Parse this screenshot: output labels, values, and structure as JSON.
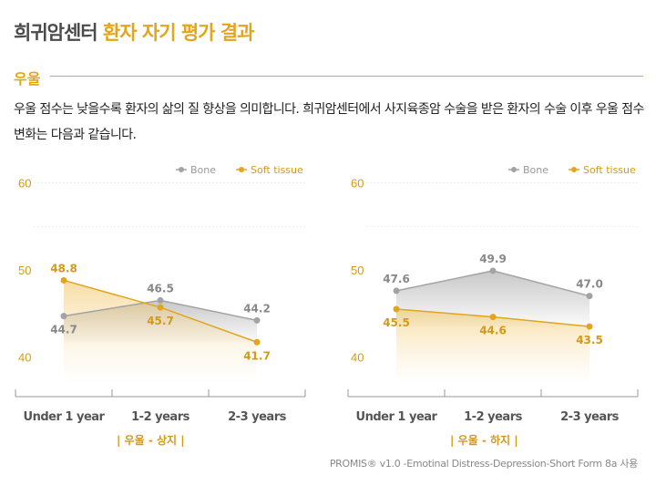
{
  "title": {
    "main": "희귀암센터",
    "accent": "환자 자기 평가 결과"
  },
  "section": "우울",
  "description": "우울 점수는 낮을수록 환자의 삶의 질 향상을 의미합니다. 희귀암센터에서 사지육종암 수술을 받은 환자의 수술 이후 우울 점수 변화는 다음과 같습니다.",
  "footer": "PROMIS® v1.0 -Emotinal Distress-Depression-Short Form 8a 사용",
  "colors": {
    "bone": "#a3a3a3",
    "soft": "#e2a51c"
  },
  "chart_data": [
    {
      "type": "line",
      "subtitle": "| 우울 - 상지 |",
      "categories": [
        "Under 1 year",
        "1-2 years",
        "2-3 years"
      ],
      "ylim": [
        37,
        62
      ],
      "yticks": [
        40,
        50,
        60
      ],
      "legend": "top-right",
      "series": [
        {
          "name": "Bone",
          "values": [
            44.7,
            46.5,
            44.2
          ]
        },
        {
          "name": "Soft tissue",
          "values": [
            48.8,
            45.7,
            41.7
          ]
        }
      ]
    },
    {
      "type": "line",
      "subtitle": "| 우울 - 하지 |",
      "categories": [
        "Under 1 year",
        "1-2 years",
        "2-3 years"
      ],
      "ylim": [
        37,
        62
      ],
      "yticks": [
        40,
        50,
        60
      ],
      "legend": "top-right",
      "series": [
        {
          "name": "Bone",
          "values": [
            47.6,
            49.9,
            47.0
          ]
        },
        {
          "name": "Soft tissue",
          "values": [
            45.5,
            44.6,
            43.5
          ]
        }
      ]
    }
  ]
}
